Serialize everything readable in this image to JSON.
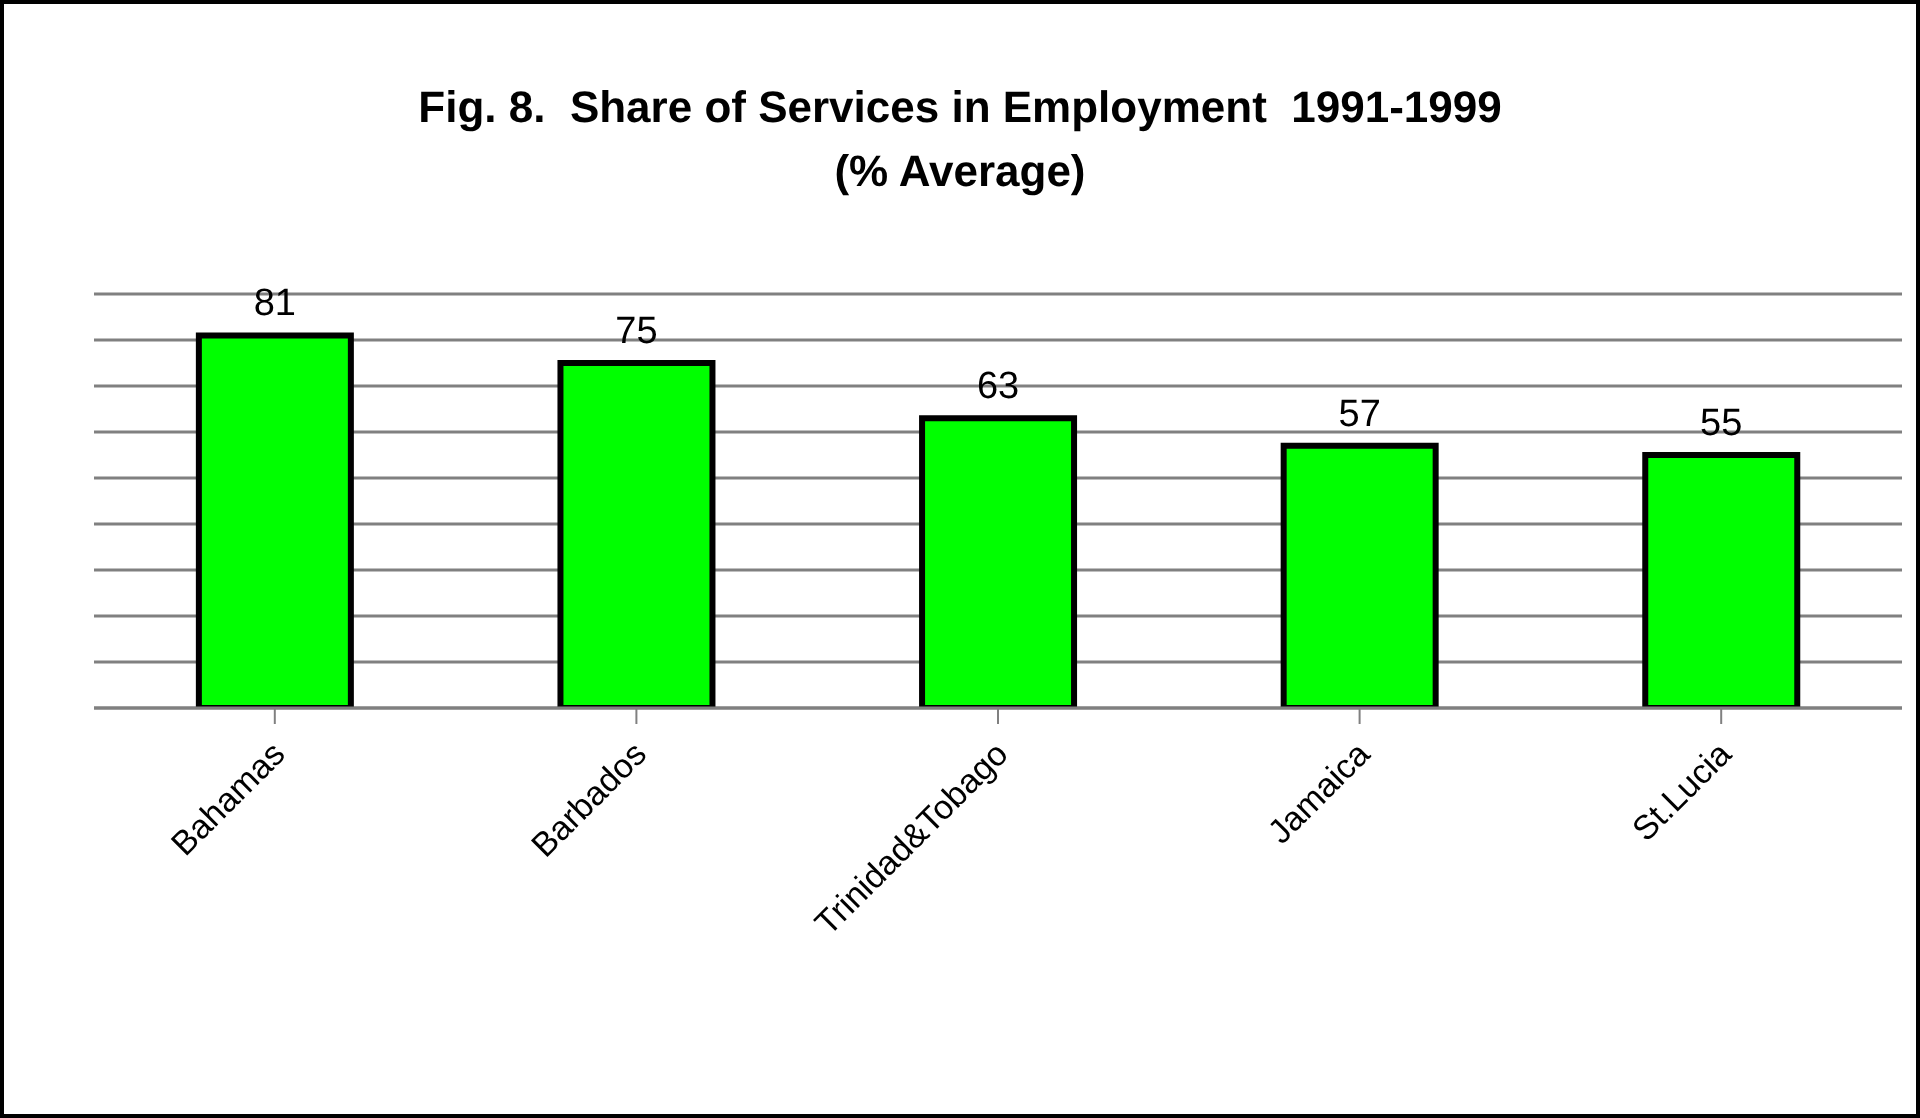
{
  "chart_data": {
    "type": "bar",
    "title": "Fig. 8.  Share of Services in Employment  1991-1999",
    "subtitle": "(% Average)",
    "categories": [
      "Bahamas",
      "Barbados",
      "Trinidad&Tobago",
      "Jamaica",
      "St.Lucia"
    ],
    "values": [
      81,
      75,
      63,
      57,
      55
    ],
    "color": "#00ff00",
    "data_labels": true,
    "ylim": [
      0,
      90
    ],
    "yticks": [
      {
        "value": 0,
        "label": null
      },
      {
        "value": 10,
        "label": null
      },
      {
        "value": 20,
        "label": null
      },
      {
        "value": 30,
        "label": null
      },
      {
        "value": 40,
        "label": null
      },
      {
        "value": 50,
        "label": null
      },
      {
        "value": 60,
        "label": null
      },
      {
        "value": 70,
        "label": null
      },
      {
        "value": 80,
        "label": null
      }
    ],
    "grid": "y",
    "tick_labels": "x"
  }
}
